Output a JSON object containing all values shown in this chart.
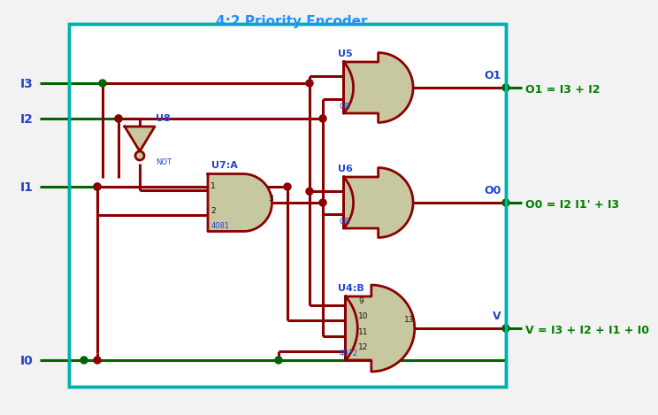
{
  "title": "4:2 Priority Encoder",
  "title_color": "#1E90FF",
  "background_color": "#F2F2F2",
  "border_color": "#00B0B0",
  "wire_color_dark": "#8B0000",
  "wire_color_green": "#006400",
  "gate_fill": "#C8C8A0",
  "gate_edge": "#8B0000",
  "label_color_blue": "#2244CC",
  "label_color_green": "#008000",
  "equations": [
    "O1 = I3 + I2",
    "O0 = I2 I1' + I3",
    "V = I3 + I2 + I1 + I0"
  ]
}
